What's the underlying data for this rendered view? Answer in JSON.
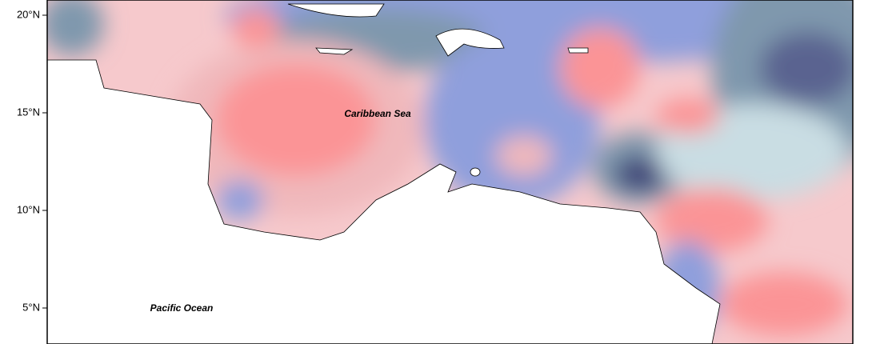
{
  "map": {
    "labels": [
      "Caribbean Sea",
      "Pacific Ocean"
    ],
    "yticks": [
      {
        "value": 20,
        "label": "20°N"
      },
      {
        "value": 15,
        "label": "15°N"
      },
      {
        "value": 10,
        "label": "10°N"
      },
      {
        "value": 5,
        "label": "5°N"
      }
    ]
  }
}
